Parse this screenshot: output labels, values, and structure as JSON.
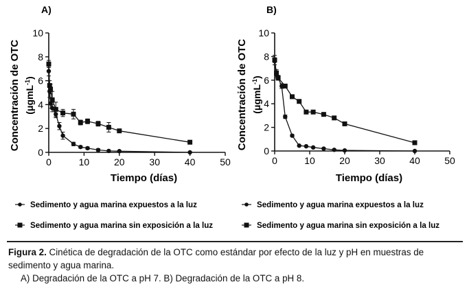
{
  "chart_data": [
    {
      "type": "line",
      "panel_label": "A)",
      "xlabel": "Tiempo (días)",
      "ylabel_line1": "Concentración de OTC",
      "ylabel_line2_prefix": "(μgmL",
      "ylabel_line2_sup": "-1",
      "ylabel_line2_suffix": ")",
      "xlim": [
        0,
        50
      ],
      "ylim": [
        0,
        10
      ],
      "xticks": [
        "0",
        "10",
        "20",
        "30",
        "40",
        "50"
      ],
      "yticks": [
        "0",
        "2",
        "4",
        "6",
        "8",
        "10"
      ],
      "series": [
        {
          "name": "Sedimento y agua marina expuestos a la luz",
          "marker": "circle",
          "x": [
            0,
            0.25,
            0.5,
            1,
            2,
            3,
            4,
            7,
            9,
            11,
            14,
            17,
            20,
            40
          ],
          "y": [
            6.8,
            5.1,
            4.1,
            3.7,
            3.2,
            2.2,
            1.4,
            0.7,
            0.45,
            0.35,
            0.2,
            0.12,
            0.1,
            0.0
          ],
          "err": [
            0.4,
            0.5,
            0.4,
            0.3,
            0.3,
            0.3,
            0.3,
            0.15,
            0.1,
            0.1,
            0.1,
            0.05,
            0.05,
            0.05
          ]
        },
        {
          "name": "Sedimento y agua marina sin exposición a la luz",
          "marker": "square",
          "x": [
            0,
            0.25,
            0.5,
            1,
            2,
            4,
            7,
            9,
            11,
            14,
            17,
            20,
            40
          ],
          "y": [
            7.4,
            5.6,
            5.3,
            4.4,
            3.6,
            3.3,
            3.2,
            2.5,
            2.6,
            2.4,
            2.1,
            1.8,
            0.85
          ],
          "err": [
            0.3,
            0.4,
            0.4,
            0.7,
            0.6,
            0.3,
            0.4,
            0.2,
            0.2,
            0.2,
            0.4,
            0.15,
            0.1
          ]
        }
      ]
    },
    {
      "type": "line",
      "panel_label": "B)",
      "xlabel": "Tiempo (días)",
      "ylabel_line1": "Concentración de OTC",
      "ylabel_line2_prefix": "(μgmL",
      "ylabel_line2_sup": "-1",
      "ylabel_line2_suffix": ")",
      "xlim": [
        0,
        50
      ],
      "ylim": [
        0,
        10
      ],
      "xticks": [
        "0",
        "10",
        "20",
        "30",
        "40",
        "50"
      ],
      "yticks": [
        "0",
        "2",
        "4",
        "6",
        "8",
        "10"
      ],
      "series": [
        {
          "name": "Sedimento y agua marina expuestos a la luz",
          "marker": "circle",
          "x": [
            0,
            0.5,
            1,
            2,
            3,
            5,
            7,
            9,
            11,
            14,
            17,
            20,
            40
          ],
          "y": [
            7.6,
            6.5,
            6.2,
            5.5,
            2.9,
            1.3,
            0.45,
            0.4,
            0.3,
            0.2,
            0.1,
            0.05,
            0.0
          ],
          "err": [
            0.3,
            0.3,
            0.2,
            0.2,
            0.15,
            0.1,
            0.05,
            0.05,
            0.05,
            0.05,
            0.05,
            0.05,
            0.05
          ]
        },
        {
          "name": "Sedimento y agua marina sin exposición a la luz",
          "marker": "square",
          "x": [
            0,
            0.5,
            1,
            3,
            5,
            7,
            9,
            11,
            14,
            17,
            20,
            40
          ],
          "y": [
            7.7,
            6.6,
            6.2,
            5.5,
            4.6,
            4.2,
            3.3,
            3.3,
            3.1,
            2.8,
            2.3,
            0.7
          ],
          "err": [
            0.4,
            0.3,
            0.2,
            0.15,
            0.15,
            0.1,
            0.1,
            0.1,
            0.1,
            0.1,
            0.1,
            0.1
          ]
        }
      ]
    }
  ],
  "caption": {
    "figure_label": "Figura 2.",
    "text_line1": " Cinética de degradación de la OTC como estándar por efecto de la luz y pH en muestras de sedimento y agua marina.",
    "text_line2": "A) Degradación de la OTC a pH 7. B) Degradación de la OTC a pH 8."
  }
}
